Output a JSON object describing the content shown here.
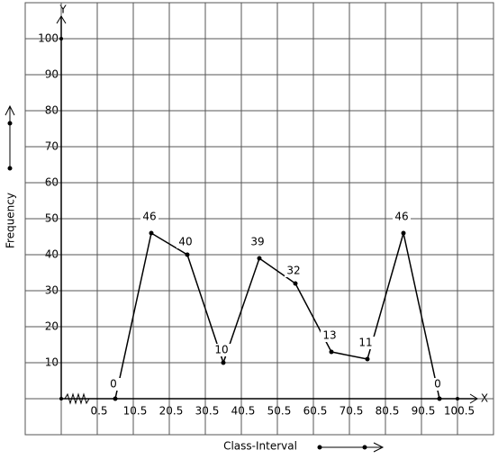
{
  "chart_data": {
    "type": "line",
    "x_label": "Class-Interval",
    "y_label": "Frequency",
    "x_axis_name": "X",
    "y_axis_name": "Y",
    "x": [
      5.5,
      15.5,
      25.5,
      35.5,
      45.5,
      55.5,
      65.5,
      75.5,
      85.5,
      95.5
    ],
    "series": [
      {
        "name": "Frequency",
        "color": "#000000",
        "values": [
          0,
          46,
          40,
          10,
          39,
          32,
          13,
          11,
          46,
          0
        ]
      }
    ],
    "xlim": [
      -19.5,
      110.5
    ],
    "ylim": [
      -10,
      110
    ],
    "xticks": [
      0.5,
      10.5,
      20.5,
      30.5,
      40.5,
      50.5,
      60.5,
      70.5,
      80.5,
      90.5,
      100.5
    ],
    "yticks": [
      10,
      20,
      30,
      40,
      50,
      60,
      70,
      80,
      90,
      100
    ],
    "grid": true
  }
}
